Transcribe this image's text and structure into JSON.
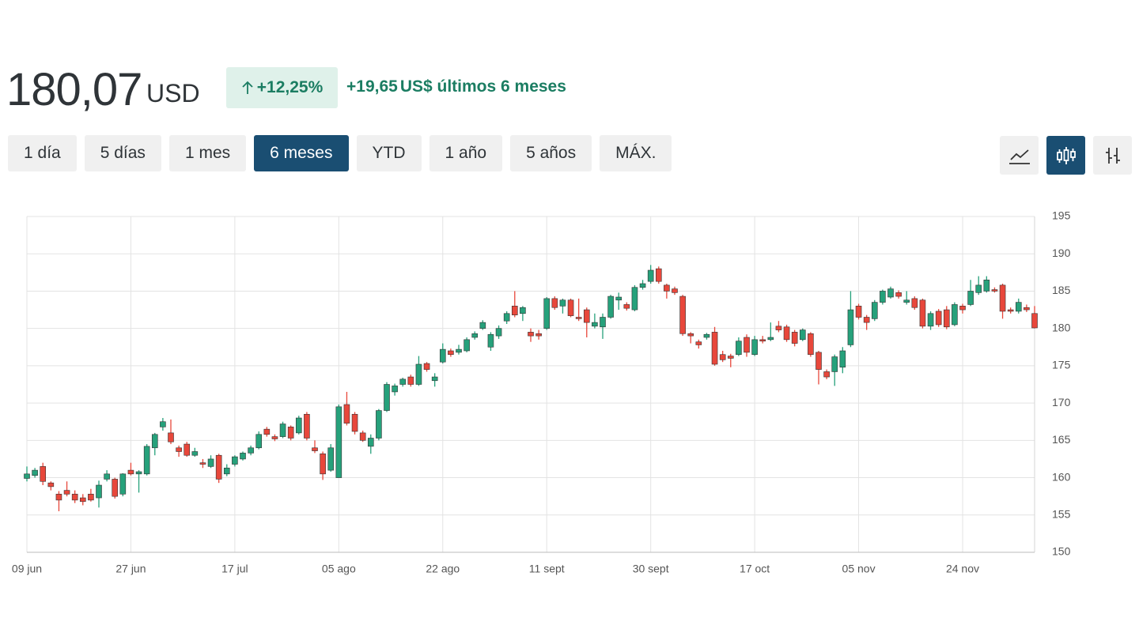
{
  "header": {
    "price": "180,07",
    "currency": "USD",
    "change_pct": "+12,25%",
    "change_abs": "+19,65",
    "change_text": "US$ últimos 6 meses"
  },
  "ranges": {
    "items": [
      "1 día",
      "5 días",
      "1 mes",
      "6 meses",
      "YTD",
      "1 año",
      "5 años",
      "MÁX."
    ],
    "active": 3
  },
  "chart_data": {
    "type": "candlestick",
    "categories": [
      "09 jun",
      null,
      null,
      null,
      null,
      null,
      null,
      null,
      null,
      null,
      null,
      null,
      null,
      "27 jun",
      null,
      null,
      null,
      null,
      null,
      null,
      null,
      null,
      null,
      null,
      null,
      null,
      "17 jul",
      null,
      null,
      null,
      null,
      null,
      null,
      null,
      null,
      null,
      null,
      null,
      null,
      "05 ago",
      null,
      null,
      null,
      null,
      null,
      null,
      null,
      null,
      null,
      null,
      null,
      null,
      "22 ago",
      null,
      null,
      null,
      null,
      null,
      null,
      null,
      null,
      null,
      null,
      null,
      null,
      "11 sept",
      null,
      null,
      null,
      null,
      null,
      null,
      null,
      null,
      null,
      null,
      null,
      null,
      "30 sept",
      null,
      null,
      null,
      null,
      null,
      null,
      null,
      null,
      null,
      null,
      null,
      null,
      "17 oct",
      null,
      null,
      null,
      null,
      null,
      null,
      null,
      null,
      null,
      null,
      null,
      null,
      "05 nov",
      null,
      null,
      null,
      null,
      null,
      null,
      null,
      null,
      null,
      null,
      null,
      null,
      "24 nov",
      null,
      null,
      null,
      null,
      null,
      null,
      null,
      null,
      null
    ],
    "open": [
      159.9,
      160.3,
      161.5,
      159.3,
      157.8,
      158.3,
      157.8,
      157.3,
      157.8,
      157.3,
      159.8,
      159.8,
      157.8,
      161,
      160.5,
      160.5,
      164,
      166.8,
      166,
      164,
      164.5,
      163,
      162,
      161.5,
      163,
      160.5,
      161.8,
      162.5,
      163.3,
      164,
      166.5,
      165.5,
      165.5,
      166.8,
      166,
      168.5,
      164,
      163.2,
      161,
      160,
      169.8,
      168.5,
      166,
      164.2,
      165.3,
      169,
      171.5,
      172.5,
      173.5,
      172.5,
      175.3,
      173,
      175.5,
      177,
      176.8,
      177,
      178.8,
      180,
      177.5,
      179,
      181,
      183,
      182,
      179.5,
      179.3,
      180,
      184,
      183,
      183.8,
      181.5,
      182.5,
      180.3,
      180.2,
      181.5,
      183.8,
      183.2,
      182.5,
      185.5,
      186.3,
      188,
      185.8,
      185.3,
      184.3,
      179.3,
      178.2,
      178.8,
      179.5,
      176.5,
      176.3,
      176.5,
      178.8,
      176.5,
      178.5,
      178.5,
      180.3,
      180.2,
      179.5,
      178.5,
      179.3,
      176.8,
      174.2,
      174.2,
      174.8,
      177.8,
      183,
      181.5,
      181.3,
      183.5,
      184.2,
      184.8,
      183.5,
      184,
      183.8,
      180.3,
      182.3,
      182.5,
      180.5,
      183,
      183.2,
      184.8,
      185,
      185.2,
      185.8,
      182.5,
      182.3,
      182.8,
      182
    ],
    "high": [
      161.5,
      161.3,
      162,
      159.5,
      158.2,
      159.5,
      158.3,
      157.8,
      158.5,
      159.6,
      161,
      160,
      160.6,
      162,
      161,
      164.5,
      166,
      168,
      167.8,
      164.3,
      164.8,
      164,
      162.5,
      163,
      163.2,
      161.8,
      163,
      163.5,
      164.3,
      166.2,
      166.8,
      165.8,
      167.5,
      167,
      168.3,
      168.8,
      165,
      163.5,
      164.5,
      169.8,
      171.5,
      168.8,
      166.3,
      165.8,
      169.2,
      172.8,
      172.6,
      173.4,
      173.8,
      176.3,
      175.5,
      174,
      178,
      177.3,
      177.8,
      178.8,
      179.6,
      181.1,
      179.5,
      180.4,
      182.3,
      185,
      183,
      180,
      179.8,
      184.2,
      184.3,
      184,
      184,
      184,
      182.8,
      182,
      182,
      184.5,
      184.8,
      183.5,
      185.8,
      186.5,
      188.5,
      188.3,
      186,
      185.6,
      184.5,
      179.5,
      178.5,
      179.4,
      180.2,
      177,
      176.6,
      178.8,
      179.2,
      179,
      179,
      180.8,
      181,
      180.5,
      179.8,
      180,
      179.5,
      177,
      174.5,
      176.5,
      177.5,
      185,
      183.3,
      181.8,
      183.8,
      185.2,
      185.6,
      185.1,
      185,
      184.3,
      184,
      182.3,
      182.6,
      183,
      183.5,
      183.3,
      186.5,
      187,
      187,
      185.5,
      186,
      182.8,
      184,
      183.2,
      183
    ],
    "low": [
      159.5,
      160,
      159,
      158.3,
      155.5,
      157.5,
      156.6,
      156.3,
      156.8,
      156,
      159.5,
      157.2,
      157.5,
      160.3,
      158,
      160.3,
      163,
      166.3,
      164.5,
      162.8,
      162.8,
      162.8,
      161.3,
      161.3,
      159.3,
      160.2,
      161.5,
      162.3,
      163,
      163.8,
      165.5,
      164.9,
      165.3,
      165,
      165.8,
      165,
      163.3,
      159.7,
      160.8,
      160,
      167,
      165.8,
      164.8,
      163.2,
      165,
      168.8,
      171,
      172.2,
      172.2,
      172.3,
      174.2,
      172.2,
      175.3,
      176.2,
      176.5,
      176.8,
      178.5,
      179.8,
      177,
      178.6,
      180.6,
      181.5,
      181,
      178.2,
      178.5,
      179.8,
      182.5,
      182,
      181.5,
      181,
      178.8,
      180,
      178.6,
      181.3,
      182.5,
      182.4,
      182.3,
      185.2,
      186,
      186,
      184,
      184.5,
      179,
      178,
      177.3,
      178.5,
      175,
      175.5,
      174.8,
      176.3,
      176.2,
      176.3,
      178,
      178.3,
      179.5,
      178.2,
      177.6,
      178.3,
      176.2,
      172.5,
      173.2,
      172.3,
      174,
      177.5,
      181.2,
      179.8,
      181,
      183.2,
      184,
      184,
      183.2,
      182.5,
      180,
      179.8,
      180.2,
      179.9,
      180.3,
      182,
      183,
      184.5,
      184.8,
      184.8,
      181.3,
      182,
      182,
      182.2,
      180
    ],
    "close": [
      160.5,
      161,
      159.5,
      158.8,
      157,
      157.8,
      157,
      156.8,
      157,
      159,
      160.5,
      157.5,
      160.5,
      160.5,
      160.8,
      164.2,
      165.8,
      167.5,
      164.8,
      163.5,
      163,
      163.5,
      161.8,
      162.5,
      159.8,
      161.3,
      162.8,
      163.3,
      164,
      165.8,
      165.8,
      165.2,
      167.2,
      165.3,
      168,
      165.3,
      163.6,
      160.5,
      164,
      169.5,
      167.3,
      166.2,
      165,
      165.3,
      169,
      172.5,
      172.3,
      173.2,
      172.5,
      175.2,
      174.5,
      173.5,
      177.2,
      176.5,
      177.2,
      178.5,
      179.3,
      180.8,
      179.2,
      180,
      182,
      181.8,
      182.8,
      179,
      179,
      184,
      182.8,
      183.8,
      181.7,
      181.3,
      180.8,
      180.8,
      181.5,
      184.3,
      184.2,
      182.7,
      185.5,
      186,
      187.8,
      186.3,
      185,
      184.8,
      179.3,
      179,
      177.8,
      179.2,
      175.2,
      175.8,
      176,
      178.3,
      176.8,
      178.5,
      178.3,
      178.8,
      179.8,
      178.5,
      178,
      179.8,
      176.5,
      174.5,
      173.5,
      176.2,
      177,
      182.5,
      181.5,
      180.8,
      183.5,
      185,
      185.3,
      184.3,
      183.8,
      182.8,
      180.3,
      182,
      180.5,
      180.2,
      183.2,
      182.5,
      185,
      185.8,
      186.5,
      185,
      182.3,
      182.3,
      183.5,
      182.5,
      180.07
    ],
    "up_color": "#26a17b",
    "down_color": "#e8473b",
    "ylim": [
      150,
      195
    ],
    "yticks": [
      150,
      155,
      160,
      165,
      170,
      175,
      180,
      185,
      190,
      195
    ],
    "grid": true
  }
}
